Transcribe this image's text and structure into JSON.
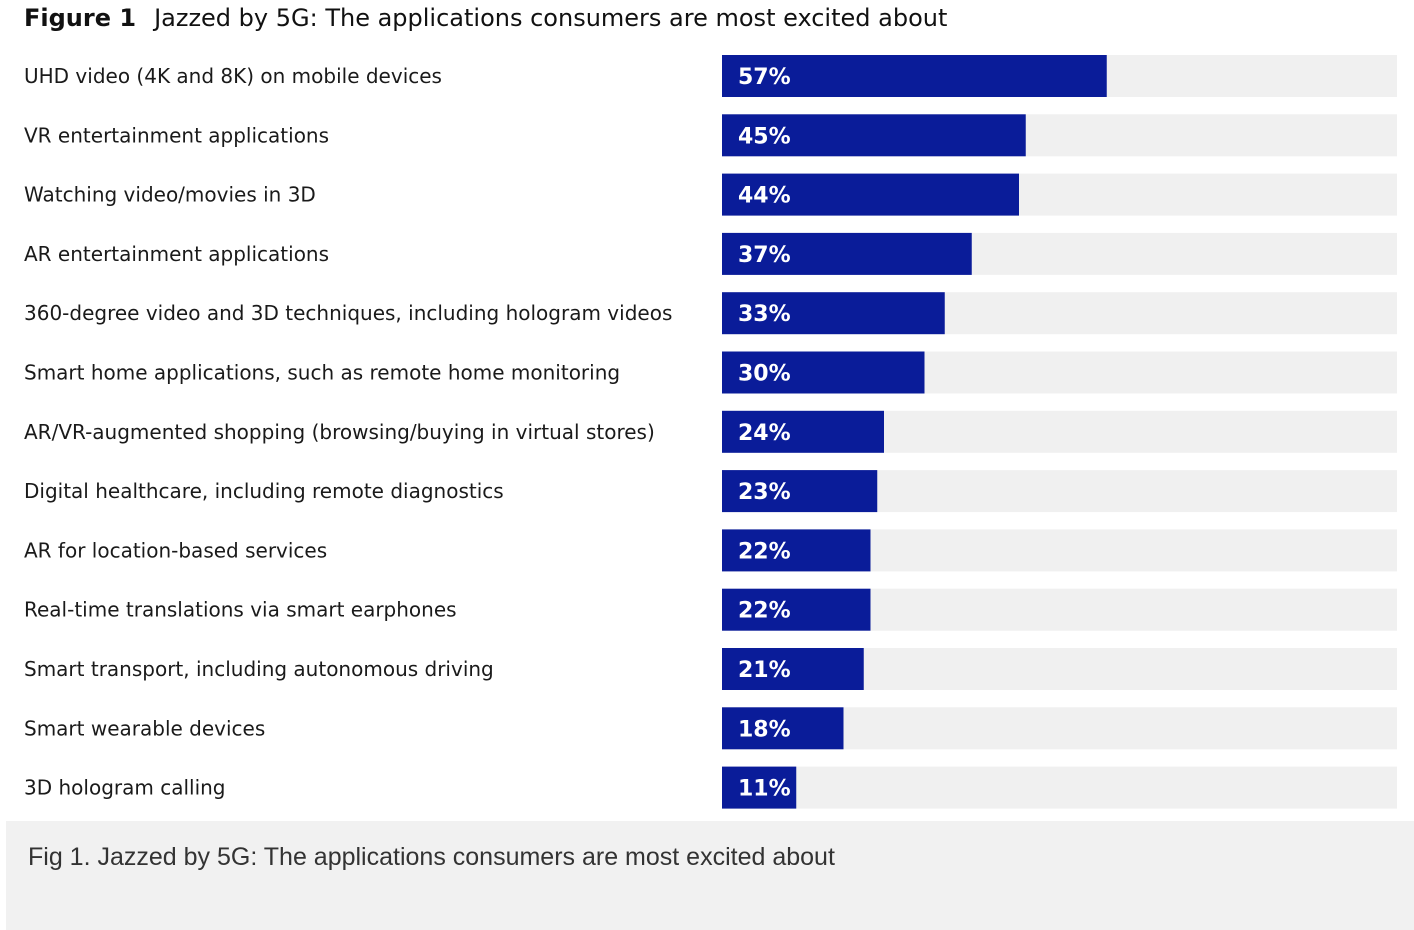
{
  "figure": {
    "label": "Figure 1",
    "title": "Jazzed by 5G: The applications consumers are most excited about"
  },
  "caption": "Fig 1. Jazzed by 5G: The applications consumers are most excited about",
  "colors": {
    "bar": "#0a1c99",
    "track": "#f0f0f0",
    "label_text": "#1a1a1a",
    "value_text": "#ffffff"
  },
  "chart_data": {
    "type": "bar",
    "orientation": "horizontal",
    "title": "Jazzed by 5G: The applications consumers are most excited about",
    "categories": [
      "UHD video (4K and 8K) on mobile devices",
      "VR entertainment applications",
      "Watching video/movies in 3D",
      "AR entertainment applications",
      "360-degree video and 3D techniques, including hologram videos",
      "Smart home applications, such as remote home monitoring",
      "AR/VR-augmented shopping (browsing/buying in virtual stores)",
      "Digital healthcare, including remote diagnostics",
      "AR for location-based services",
      "Real-time translations via smart earphones",
      "Smart transport, including autonomous driving",
      "Smart wearable devices",
      "3D hologram calling"
    ],
    "values": [
      57,
      45,
      44,
      37,
      33,
      30,
      24,
      23,
      22,
      22,
      21,
      18,
      11
    ],
    "value_labels": [
      "57%",
      "45%",
      "44%",
      "37%",
      "33%",
      "30%",
      "24%",
      "23%",
      "22%",
      "22%",
      "21%",
      "18%",
      "11%"
    ],
    "xlim": [
      0,
      100
    ],
    "unit": "%",
    "grid": false,
    "legend": "none"
  }
}
